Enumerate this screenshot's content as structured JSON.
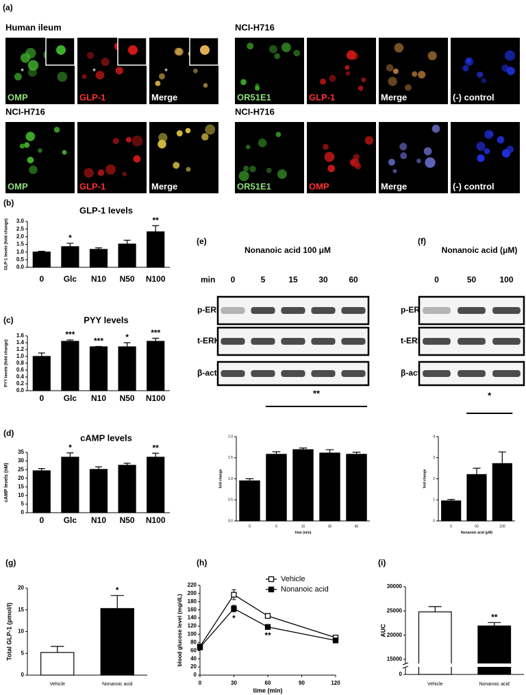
{
  "images": {
    "label": "(a)",
    "groups": [
      {
        "title": "Human ileum",
        "inset": true,
        "panels": [
          {
            "label": "OMP",
            "color": "#8ee07a",
            "tint": "#3fae2a",
            "mark": "*"
          },
          {
            "label": "GLP-1",
            "color": "#ff3030",
            "tint": "#d01818",
            "mark": "*"
          },
          {
            "label": "Merge",
            "color": "#ffffff",
            "tint": "#e0b050",
            "mark": "*"
          }
        ]
      },
      {
        "title": "NCI-H716",
        "panels": [
          {
            "label": "OR51E1",
            "color": "#8ee07a",
            "tint": "#3fae2a"
          },
          {
            "label": "GLP-1",
            "color": "#ff3030",
            "tint": "#d01818"
          },
          {
            "label": "Merge",
            "color": "#ffffff",
            "tint": "#d08a40"
          },
          {
            "label": "(-) control",
            "color": "#ffffff",
            "tint": "#2030e0"
          }
        ]
      },
      {
        "title": "NCI-H716",
        "panels": [
          {
            "label": "OMP",
            "color": "#8ee07a",
            "tint": "#3fae2a"
          },
          {
            "label": "GLP-1",
            "color": "#ff3030",
            "tint": "#d01818"
          },
          {
            "label": "Merge",
            "color": "#ffffff",
            "tint": "#d8c040"
          }
        ]
      },
      {
        "title": "NCI-H716",
        "panels": [
          {
            "label": "OR51E1",
            "color": "#8ee07a",
            "tint": "#3fae2a"
          },
          {
            "label": "OMP",
            "color": "#ff3030",
            "tint": "#d01818"
          },
          {
            "label": "Merge",
            "color": "#ffffff",
            "tint": "#6a70d0"
          },
          {
            "label": "(-) control",
            "color": "#ffffff",
            "tint": "#2030e0"
          }
        ]
      }
    ]
  },
  "blots": [
    {
      "label": "(e)",
      "title": "Nonanoic acid 100 μM",
      "lane_header": "min",
      "lanes": [
        "0",
        "5",
        "15",
        "30",
        "60"
      ],
      "rows": [
        "p-ERK",
        "t-ERK",
        "β-actin"
      ]
    },
    {
      "label": "(f)",
      "title": "Nonanoic acid (μM)",
      "lanes": [
        "0",
        "50",
        "100"
      ],
      "rows": [
        "p-ERK",
        "t-ERK",
        "β-actin"
      ]
    }
  ],
  "chart_data": [
    {
      "type": "bar",
      "label": "(b)",
      "title": "GLP-1 levels",
      "y_label": "GLP-1 levels (fold change)",
      "categories": [
        "0",
        "Glc",
        "N10",
        "N50",
        "N100"
      ],
      "values": [
        1.0,
        1.35,
        1.17,
        1.52,
        2.32
      ],
      "errors": [
        0.05,
        0.22,
        0.1,
        0.25,
        0.4
      ],
      "annotations": [
        null,
        "*",
        null,
        null,
        "**"
      ],
      "color": "#000000",
      "ylim": [
        0,
        3
      ],
      "yticks": [
        {
          "value": 0,
          "label": "0.0"
        },
        0.5,
        {
          "value": 1,
          "label": "1.0"
        },
        1.5,
        {
          "value": 2,
          "label": "2.0"
        },
        2.5,
        {
          "value": 3,
          "label": "3.0"
        }
      ]
    },
    {
      "type": "bar",
      "label": "(c)",
      "title": "PYY levels",
      "y_label": "PYY levels (fold change)",
      "categories": [
        "0",
        "Glc",
        "N10",
        "N50",
        "N100"
      ],
      "values": [
        1.0,
        1.44,
        1.28,
        1.28,
        1.44
      ],
      "errors": [
        0.1,
        0.04,
        0.01,
        0.12,
        0.09
      ],
      "annotations": [
        null,
        "***",
        "***",
        "*",
        "***"
      ],
      "color": "#000000",
      "ylim": [
        0,
        1.6
      ],
      "yticks": [
        {
          "value": 0,
          "label": "0.0"
        },
        0.2,
        0.4,
        0.6,
        0.8,
        {
          "value": 1,
          "label": "1.0"
        },
        1.2,
        1.4,
        1.6
      ]
    },
    {
      "type": "bar",
      "label": "(d)",
      "title": "cAMP levels",
      "y_label": "cAMP levels (nM)",
      "categories": [
        "0",
        "Glc",
        "N10",
        "N50",
        "N100"
      ],
      "values": [
        24.3,
        32.2,
        25.1,
        27.5,
        32.2
      ],
      "errors": [
        1.3,
        2.5,
        1.5,
        1.2,
        2.3
      ],
      "annotations": [
        null,
        "*",
        null,
        null,
        "**"
      ],
      "color": "#000000",
      "ylim": [
        0,
        35
      ],
      "yticks": [
        0,
        5,
        10,
        15,
        20,
        25,
        30,
        35
      ]
    },
    {
      "type": "bar",
      "y_label": "fold change",
      "x_label": "time (min)",
      "categories": [
        "0",
        "5",
        "15",
        "30",
        "60"
      ],
      "values": [
        0.95,
        1.58,
        1.69,
        1.61,
        1.58
      ],
      "errors": [
        0.05,
        0.06,
        0.04,
        0.08,
        0.05
      ],
      "bracket": {
        "label": "**",
        "from": "5",
        "to": "60"
      },
      "color": "#000000",
      "ylim": [
        0,
        2
      ],
      "yticks": [
        {
          "value": 0,
          "label": "0.0"
        },
        0.5,
        {
          "value": 1,
          "label": "1.0"
        },
        1.5,
        {
          "value": 2,
          "label": "2.0"
        }
      ]
    },
    {
      "type": "bar",
      "y_label": "fold change",
      "x_label": "Nonanoic acid (μM)",
      "categories": [
        "0",
        "50",
        "100"
      ],
      "values": [
        0.95,
        2.2,
        2.72
      ],
      "errors": [
        0.07,
        0.3,
        0.55
      ],
      "bracket": {
        "label": "*",
        "from": "50",
        "to": "100"
      },
      "color": "#000000",
      "ylim": [
        0,
        4
      ],
      "yticks": [
        0,
        1,
        2,
        3,
        4
      ]
    },
    {
      "type": "bar",
      "label": "(g)",
      "y_label": "Total  GLP-1 (pmol/l)",
      "categories": [
        "Vehicle",
        "Nonanoic acid"
      ],
      "values": [
        5.2,
        15.3
      ],
      "errors": [
        1.4,
        3.0
      ],
      "annotations": [
        null,
        "*"
      ],
      "colors": [
        "#ffffff",
        "#000000"
      ],
      "ylim": [
        0,
        20
      ],
      "yticks": [
        0,
        5,
        10,
        15,
        20
      ]
    },
    {
      "type": "line",
      "label": "(h)",
      "x_label": "time (min)",
      "y_label": "blood glucose level (mg/dL)",
      "x": [
        0,
        30,
        60,
        120
      ],
      "series": [
        {
          "name": "Vehicle",
          "color": "#000000",
          "marker": "open",
          "values": [
            70,
            197,
            145,
            92
          ],
          "errors": [
            5,
            12,
            4,
            5
          ]
        },
        {
          "name": "Nonanoic acid",
          "color": "#000000",
          "marker": "filled",
          "values": [
            68,
            163,
            118,
            85
          ],
          "errors": [
            5,
            8,
            5,
            4
          ]
        }
      ],
      "annotations": [
        null,
        "*",
        "**",
        null
      ],
      "xlim": [
        0,
        120
      ],
      "xticks": [
        0,
        30,
        60,
        90,
        120
      ],
      "ylim": [
        0,
        220
      ],
      "yticks": [
        0,
        20,
        40,
        60,
        80,
        100,
        120,
        140,
        160,
        180,
        200,
        220
      ]
    },
    {
      "type": "bar",
      "label": "(i)",
      "y_label": "AUC",
      "categories": [
        "Vehicle",
        "Nonanoic acid"
      ],
      "values": [
        24800,
        21900
      ],
      "errors": [
        1100,
        700
      ],
      "annotations": [
        null,
        "**"
      ],
      "colors": [
        "#ffffff",
        "#000000"
      ],
      "axis_break": true,
      "ylim": [
        0,
        30000
      ],
      "yticks": [
        0,
        15000,
        20000,
        25000,
        30000
      ]
    }
  ]
}
